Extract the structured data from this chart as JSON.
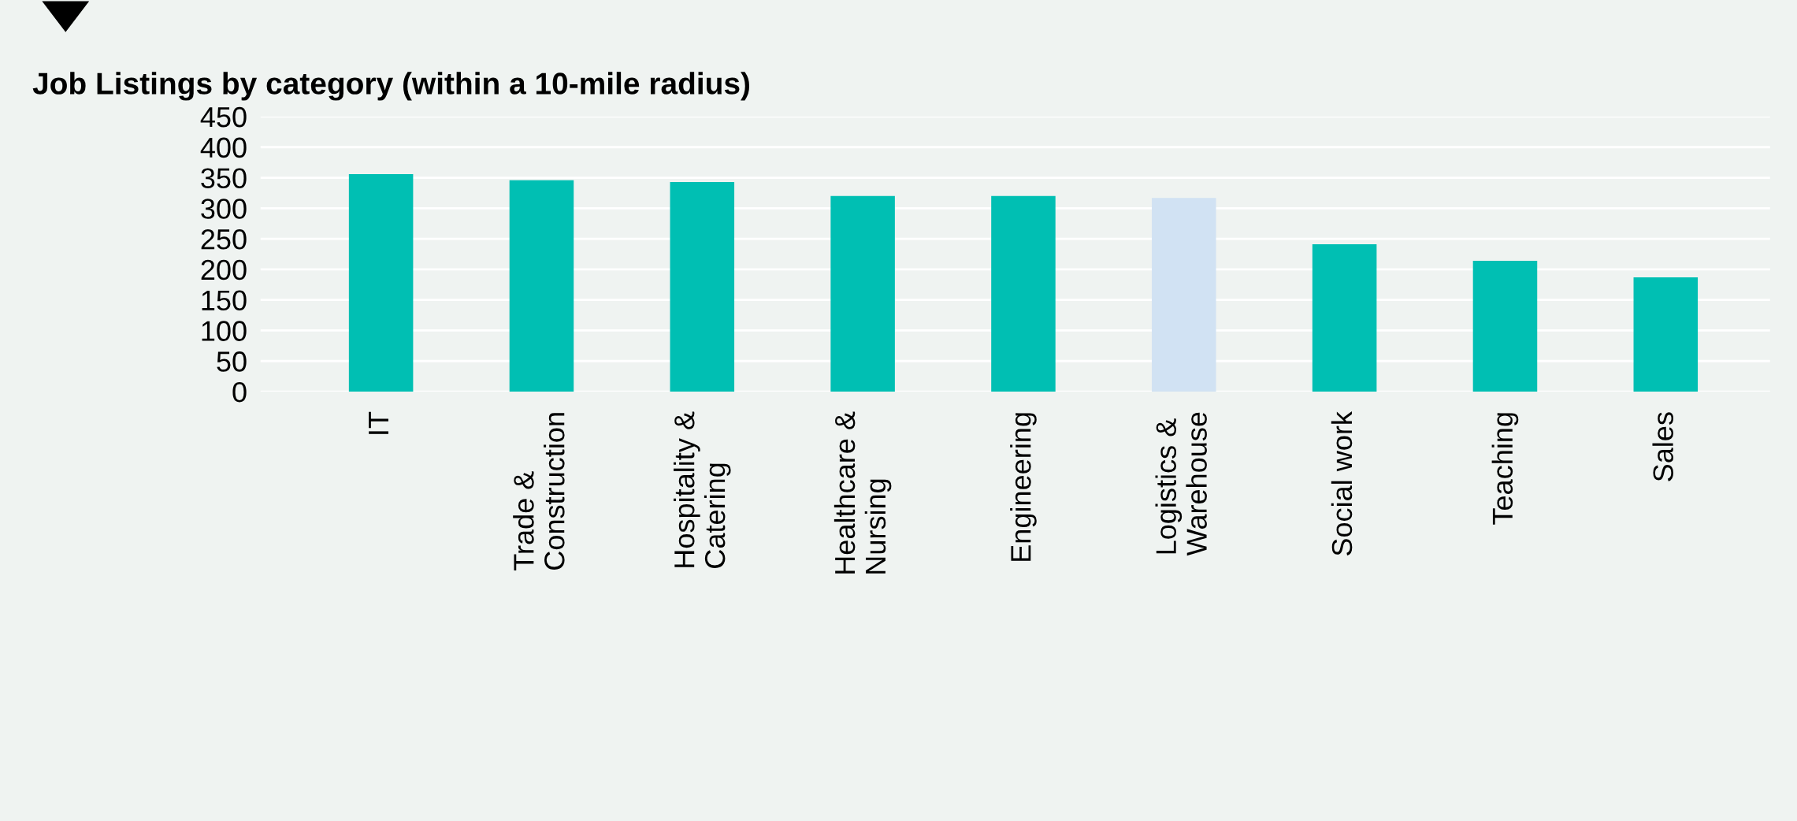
{
  "chart_data": {
    "type": "bar",
    "title": "Job Listings by category (within a 10-mile radius)",
    "categories": [
      "IT",
      "Trade &\nConstruction",
      "Hospitality &\nCatering",
      "Healthcare &\nNursing",
      "Engineering",
      "Logistics &\nWarehouse",
      "Social work",
      "Teaching",
      "Sales"
    ],
    "values": [
      356,
      346,
      343,
      320,
      320,
      317,
      241,
      214,
      187
    ],
    "colors": [
      "#00bfb3",
      "#00bfb3",
      "#00bfb3",
      "#00bfb3",
      "#00bfb3",
      "#d1e2f3",
      "#00bfb3",
      "#00bfb3",
      "#00bfb3"
    ],
    "ylim": [
      0,
      450
    ],
    "yticks": [
      0,
      50,
      100,
      150,
      200,
      250,
      300,
      350,
      400,
      450
    ],
    "grid": "y"
  }
}
